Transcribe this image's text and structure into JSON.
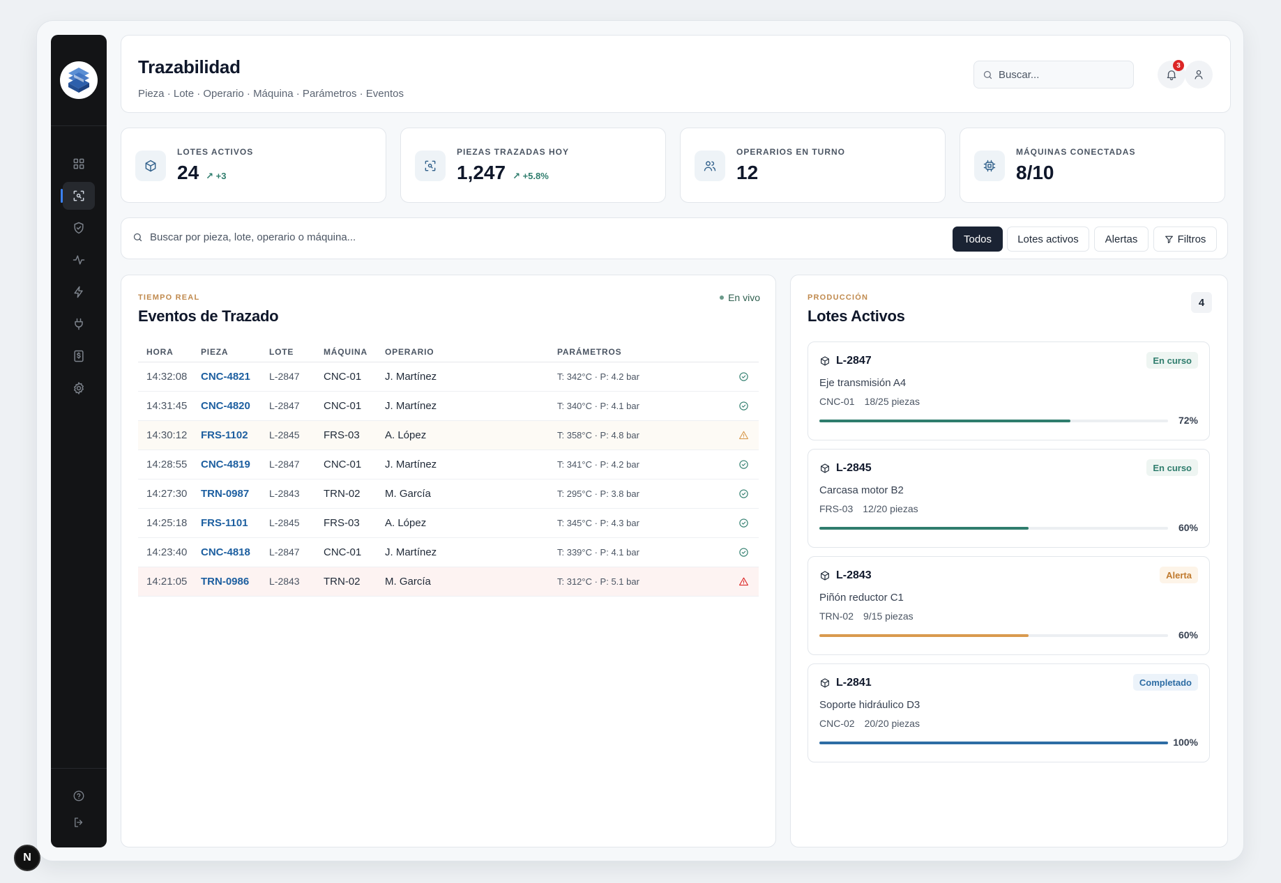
{
  "header": {
    "title": "Trazabilidad",
    "breadcrumb": "Pieza · Lote · Operario · Máquina · Parámetros · Eventos",
    "search_placeholder": "Buscar...",
    "notifications_count": "3"
  },
  "sidebar": {
    "items": [
      {
        "icon": "dashboard-icon",
        "active": false
      },
      {
        "icon": "trace-scan-icon",
        "active": true
      },
      {
        "icon": "shield-check-icon",
        "active": false
      },
      {
        "icon": "activity-icon",
        "active": false
      },
      {
        "icon": "lightning-icon",
        "active": false
      },
      {
        "icon": "plug-icon",
        "active": false
      },
      {
        "icon": "invoice-icon",
        "active": false
      },
      {
        "icon": "gear-icon",
        "active": false
      }
    ],
    "bottom": [
      {
        "icon": "help-icon"
      },
      {
        "icon": "logout-icon"
      }
    ]
  },
  "stats": [
    {
      "label": "LOTES ACTIVOS",
      "value": "24",
      "delta": "+3",
      "icon": "box-icon"
    },
    {
      "label": "PIEZAS TRAZADAS HOY",
      "value": "1,247",
      "delta": "+5.8%",
      "icon": "scan-icon"
    },
    {
      "label": "OPERARIOS EN TURNO",
      "value": "12",
      "delta": "",
      "icon": "users-icon"
    },
    {
      "label": "MÁQUINAS CONECTADAS",
      "value": "8/10",
      "delta": "",
      "icon": "cpu-icon"
    }
  ],
  "filters": {
    "search_placeholder": "Buscar por pieza, lote, operario o máquina...",
    "chips": [
      "Todos",
      "Lotes activos",
      "Alertas",
      "Filtros"
    ],
    "active": "Todos"
  },
  "events": {
    "eyebrow": "TIEMPO REAL",
    "title": "Eventos de Trazado",
    "live_label": "En vivo",
    "columns": [
      "HORA",
      "PIEZA",
      "LOTE",
      "MÁQUINA",
      "OPERARIO",
      "PARÁMETROS",
      ""
    ],
    "rows": [
      {
        "time": "14:32:08",
        "piece": "CNC-4821",
        "lot": "L-2847",
        "machine": "CNC-01",
        "operator": "J. Martínez",
        "params": "T: 342°C · P: 4.2 bar",
        "status": "ok"
      },
      {
        "time": "14:31:45",
        "piece": "CNC-4820",
        "lot": "L-2847",
        "machine": "CNC-01",
        "operator": "J. Martínez",
        "params": "T: 340°C · P: 4.1 bar",
        "status": "ok"
      },
      {
        "time": "14:30:12",
        "piece": "FRS-1102",
        "lot": "L-2845",
        "machine": "FRS-03",
        "operator": "A. López",
        "params": "T: 358°C · P: 4.8 bar",
        "status": "warning"
      },
      {
        "time": "14:28:55",
        "piece": "CNC-4819",
        "lot": "L-2847",
        "machine": "CNC-01",
        "operator": "J. Martínez",
        "params": "T: 341°C · P: 4.2 bar",
        "status": "ok"
      },
      {
        "time": "14:27:30",
        "piece": "TRN-0987",
        "lot": "L-2843",
        "machine": "TRN-02",
        "operator": "M. García",
        "params": "T: 295°C · P: 3.8 bar",
        "status": "ok"
      },
      {
        "time": "14:25:18",
        "piece": "FRS-1101",
        "lot": "L-2845",
        "machine": "FRS-03",
        "operator": "A. López",
        "params": "T: 345°C · P: 4.3 bar",
        "status": "ok"
      },
      {
        "time": "14:23:40",
        "piece": "CNC-4818",
        "lot": "L-2847",
        "machine": "CNC-01",
        "operator": "J. Martínez",
        "params": "T: 339°C · P: 4.1 bar",
        "status": "ok"
      },
      {
        "time": "14:21:05",
        "piece": "TRN-0986",
        "lot": "L-2843",
        "machine": "TRN-02",
        "operator": "M. García",
        "params": "T: 312°C · P: 5.1 bar",
        "status": "critical"
      }
    ]
  },
  "lots": {
    "eyebrow": "PRODUCCIÓN",
    "title": "Lotes Activos",
    "count": "4",
    "items": [
      {
        "id": "L-2847",
        "status": "En curso",
        "status_type": "progress",
        "product": "Eje transmisión A4",
        "machine": "CNC-01",
        "pieces": "18/25 piezas",
        "progress": 0.72,
        "pct": "72%",
        "color": "#2f7d6d"
      },
      {
        "id": "L-2845",
        "status": "En curso",
        "status_type": "progress",
        "product": "Carcasa motor B2",
        "machine": "FRS-03",
        "pieces": "12/20 piezas",
        "progress": 0.6,
        "pct": "60%",
        "color": "#2f7d6d"
      },
      {
        "id": "L-2843",
        "status": "Alerta",
        "status_type": "alert",
        "product": "Piñón reductor C1",
        "machine": "TRN-02",
        "pieces": "9/15 piezas",
        "progress": 0.6,
        "pct": "60%",
        "color": "#d99a4e"
      },
      {
        "id": "L-2841",
        "status": "Completado",
        "status_type": "done",
        "product": "Soporte hidráulico D3",
        "machine": "CNC-02",
        "pieces": "20/20 piezas",
        "progress": 1.0,
        "pct": "100%",
        "color": "#2e6da4"
      }
    ]
  },
  "dev_badge": "N"
}
